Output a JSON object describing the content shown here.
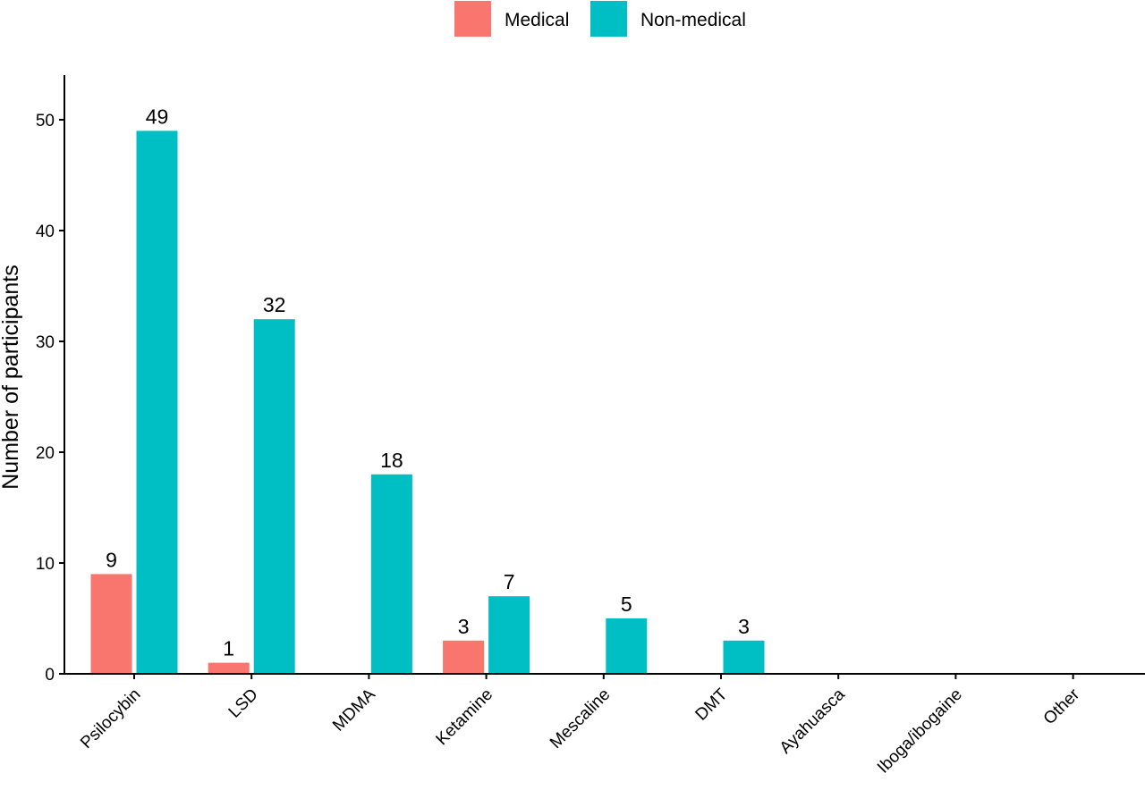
{
  "chart_data": {
    "type": "bar",
    "ylabel": "Number of participants",
    "xlabel": "",
    "ylim": [
      0,
      54
    ],
    "yticks": [
      0,
      10,
      20,
      30,
      40,
      50
    ],
    "grid": false,
    "legend_position": "top",
    "categories": [
      "Psilocybin",
      "LSD",
      "MDMA",
      "Ketamine",
      "Mescaline",
      "DMT",
      "Ayahuasca",
      "Iboga/ibogaine",
      "Other"
    ],
    "series": [
      {
        "name": "Medical",
        "color": "#F8766D",
        "values": [
          9,
          1,
          0,
          3,
          0,
          0,
          0,
          0,
          0
        ]
      },
      {
        "name": "Non-medical",
        "color": "#00BFC4",
        "values": [
          49,
          32,
          18,
          7,
          5,
          3,
          0,
          0,
          0
        ]
      }
    ]
  }
}
